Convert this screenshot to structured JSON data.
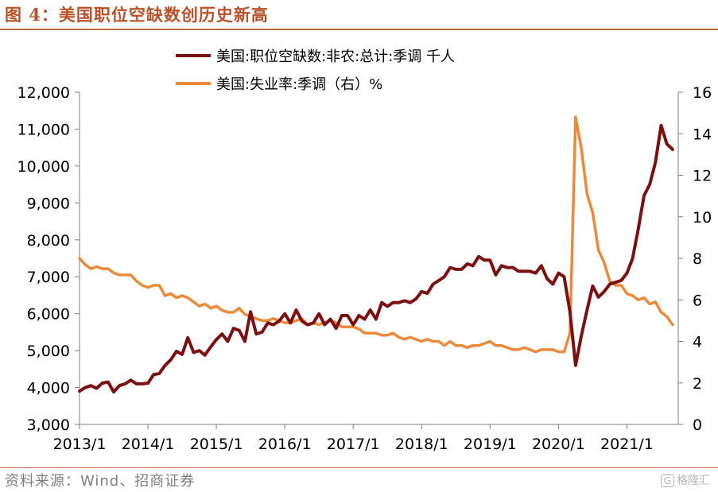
{
  "figure": {
    "title": "图 4：美国职位空缺数创历史新高",
    "source": "资料来源：Wind、招商证券",
    "watermark_icon": "G",
    "watermark_text": "格隆汇"
  },
  "colors": {
    "title": "#b8522b",
    "rule": "#c56a3f",
    "series_openings": "#7b1010",
    "series_unemployment": "#ec8a3c",
    "axis": "#7f7f7f"
  },
  "chart_data": {
    "type": "line",
    "title": "美国职位空缺数创历史新高",
    "x_tick_labels": [
      "2013/1",
      "2014/1",
      "2015/1",
      "2016/1",
      "2017/1",
      "2018/1",
      "2019/1",
      "2020/1",
      "2021/1"
    ],
    "x_tick_positions": [
      2013,
      2014,
      2015,
      2016,
      2017,
      2018,
      2019,
      2020,
      2021
    ],
    "xlim": [
      2013,
      2021.75
    ],
    "y_left": {
      "ylim": [
        3000,
        12000
      ],
      "ticks": [
        3000,
        4000,
        5000,
        6000,
        7000,
        8000,
        9000,
        10000,
        11000,
        12000
      ],
      "tick_labels": [
        "3,000",
        "4,000",
        "5,000",
        "6,000",
        "7,000",
        "8,000",
        "9,000",
        "10,000",
        "11,000",
        "12,000"
      ]
    },
    "y_right": {
      "ylim": [
        0,
        16
      ],
      "ticks": [
        0,
        2,
        4,
        6,
        8,
        10,
        12,
        14,
        16
      ],
      "tick_labels": [
        "0",
        "2",
        "4",
        "6",
        "8",
        "10",
        "12",
        "14",
        "16"
      ]
    },
    "legend_position": "top-center",
    "series": [
      {
        "name": "美国:职位空缺数:非农:总计:季调 千人",
        "axis": "left",
        "x": [
          2013.0,
          2013.083,
          2013.167,
          2013.25,
          2013.333,
          2013.417,
          2013.5,
          2013.583,
          2013.667,
          2013.75,
          2013.833,
          2013.917,
          2014.0,
          2014.083,
          2014.167,
          2014.25,
          2014.333,
          2014.417,
          2014.5,
          2014.583,
          2014.667,
          2014.75,
          2014.833,
          2014.917,
          2015.0,
          2015.083,
          2015.167,
          2015.25,
          2015.333,
          2015.417,
          2015.5,
          2015.583,
          2015.667,
          2015.75,
          2015.833,
          2015.917,
          2016.0,
          2016.083,
          2016.167,
          2016.25,
          2016.333,
          2016.417,
          2016.5,
          2016.583,
          2016.667,
          2016.75,
          2016.833,
          2016.917,
          2017.0,
          2017.083,
          2017.167,
          2017.25,
          2017.333,
          2017.417,
          2017.5,
          2017.583,
          2017.667,
          2017.75,
          2017.833,
          2017.917,
          2018.0,
          2018.083,
          2018.167,
          2018.25,
          2018.333,
          2018.417,
          2018.5,
          2018.583,
          2018.667,
          2018.75,
          2018.833,
          2018.917,
          2019.0,
          2019.083,
          2019.167,
          2019.25,
          2019.333,
          2019.417,
          2019.5,
          2019.583,
          2019.667,
          2019.75,
          2019.833,
          2019.917,
          2020.0,
          2020.083,
          2020.167,
          2020.25,
          2020.333,
          2020.417,
          2020.5,
          2020.583,
          2020.667,
          2020.75,
          2020.833,
          2020.917,
          2021.0,
          2021.083,
          2021.167,
          2021.25,
          2021.333,
          2021.417,
          2021.5,
          2021.583,
          2021.667
        ],
        "values": [
          3900,
          4000,
          4050,
          3980,
          4120,
          4150,
          3880,
          4050,
          4100,
          4200,
          4100,
          4100,
          4120,
          4350,
          4380,
          4600,
          4750,
          4980,
          4900,
          5350,
          4950,
          5000,
          4880,
          5100,
          5300,
          5450,
          5250,
          5600,
          5550,
          5250,
          6050,
          5450,
          5500,
          5750,
          5700,
          5800,
          6000,
          5750,
          6100,
          5800,
          5700,
          5750,
          6000,
          5700,
          5850,
          5600,
          5950,
          5950,
          5700,
          5950,
          5850,
          6100,
          5850,
          6300,
          6200,
          6300,
          6300,
          6350,
          6300,
          6400,
          6600,
          6550,
          6800,
          6900,
          7000,
          7250,
          7200,
          7200,
          7350,
          7300,
          7550,
          7450,
          7450,
          7050,
          7300,
          7250,
          7250,
          7150,
          7150,
          7150,
          7100,
          7300,
          6950,
          6800,
          7100,
          7000,
          6050,
          4600,
          5400,
          6100,
          6750,
          6450,
          6600,
          6800,
          6850,
          6900,
          7100,
          7500,
          8300,
          9200,
          9500,
          10100,
          11100,
          10600,
          10450
        ]
      },
      {
        "name": "美国:失业率:季调（右）%",
        "axis": "right",
        "x": [
          2013.0,
          2013.083,
          2013.167,
          2013.25,
          2013.333,
          2013.417,
          2013.5,
          2013.583,
          2013.667,
          2013.75,
          2013.833,
          2013.917,
          2014.0,
          2014.083,
          2014.167,
          2014.25,
          2014.333,
          2014.417,
          2014.5,
          2014.583,
          2014.667,
          2014.75,
          2014.833,
          2014.917,
          2015.0,
          2015.083,
          2015.167,
          2015.25,
          2015.333,
          2015.417,
          2015.5,
          2015.583,
          2015.667,
          2015.75,
          2015.833,
          2015.917,
          2016.0,
          2016.083,
          2016.167,
          2016.25,
          2016.333,
          2016.417,
          2016.5,
          2016.583,
          2016.667,
          2016.75,
          2016.833,
          2016.917,
          2017.0,
          2017.083,
          2017.167,
          2017.25,
          2017.333,
          2017.417,
          2017.5,
          2017.583,
          2017.667,
          2017.75,
          2017.833,
          2017.917,
          2018.0,
          2018.083,
          2018.167,
          2018.25,
          2018.333,
          2018.417,
          2018.5,
          2018.583,
          2018.667,
          2018.75,
          2018.833,
          2018.917,
          2019.0,
          2019.083,
          2019.167,
          2019.25,
          2019.333,
          2019.417,
          2019.5,
          2019.583,
          2019.667,
          2019.75,
          2019.833,
          2019.917,
          2020.0,
          2020.083,
          2020.167,
          2020.25,
          2020.333,
          2020.417,
          2020.5,
          2020.583,
          2020.667,
          2020.75,
          2020.833,
          2020.917,
          2021.0,
          2021.083,
          2021.167,
          2021.25,
          2021.333,
          2021.417,
          2021.5,
          2021.583,
          2021.667
        ],
        "values": [
          8.0,
          7.7,
          7.5,
          7.6,
          7.5,
          7.5,
          7.3,
          7.2,
          7.2,
          7.2,
          6.9,
          6.7,
          6.6,
          6.7,
          6.7,
          6.2,
          6.3,
          6.1,
          6.2,
          6.1,
          5.9,
          5.7,
          5.8,
          5.6,
          5.7,
          5.5,
          5.4,
          5.4,
          5.6,
          5.3,
          5.2,
          5.1,
          5.0,
          5.0,
          5.1,
          5.0,
          4.9,
          4.9,
          5.0,
          5.1,
          4.8,
          4.9,
          4.8,
          4.9,
          5.0,
          4.9,
          4.7,
          4.7,
          4.7,
          4.6,
          4.4,
          4.4,
          4.4,
          4.3,
          4.3,
          4.4,
          4.2,
          4.1,
          4.2,
          4.1,
          4.0,
          4.1,
          4.0,
          4.0,
          3.8,
          4.0,
          3.8,
          3.8,
          3.7,
          3.8,
          3.8,
          3.9,
          4.0,
          3.8,
          3.8,
          3.7,
          3.6,
          3.6,
          3.7,
          3.6,
          3.5,
          3.6,
          3.6,
          3.6,
          3.5,
          3.5,
          4.4,
          14.8,
          13.3,
          11.1,
          10.2,
          8.4,
          7.8,
          6.9,
          6.7,
          6.7,
          6.3,
          6.2,
          6.0,
          6.1,
          5.8,
          5.9,
          5.4,
          5.2,
          4.8
        ]
      }
    ]
  }
}
